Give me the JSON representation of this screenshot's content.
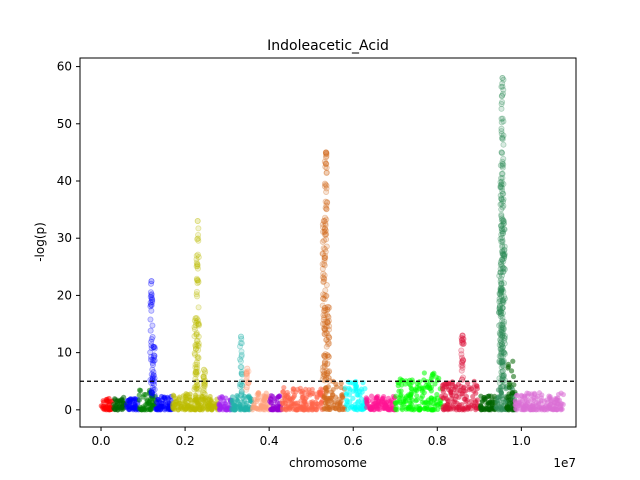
{
  "chart_data": {
    "type": "scatter",
    "title": "Indoleacetic_Acid",
    "xlabel": "chromosome",
    "ylabel": "-log(p)",
    "x_offset_label": "1e7",
    "xlim": [
      -0.05,
      1.13
    ],
    "ylim": [
      -3,
      61.5
    ],
    "x_unit": "1e7",
    "xticks": [
      0.0,
      0.2,
      0.4,
      0.6,
      0.8,
      1.0
    ],
    "xtick_labels": [
      "0.0",
      "0.2",
      "0.4",
      "0.6",
      "0.8",
      "1.0"
    ],
    "yticks": [
      0,
      10,
      20,
      30,
      40,
      50,
      60
    ],
    "ytick_labels": [
      "0",
      "10",
      "20",
      "30",
      "40",
      "50",
      "60"
    ],
    "threshold": 5,
    "grid": false,
    "legend": "none",
    "segments": [
      {
        "start": 0.0,
        "end": 0.03,
        "color": "#ff0000",
        "base": 2.0,
        "peaks": []
      },
      {
        "start": 0.03,
        "end": 0.06,
        "color": "#006400",
        "base": 2.2,
        "peaks": []
      },
      {
        "start": 0.06,
        "end": 0.09,
        "color": "#0000ff",
        "base": 2.0,
        "peaks": []
      },
      {
        "start": 0.09,
        "end": 0.13,
        "color": "#008000",
        "base": 3.5,
        "peaks": []
      },
      {
        "start": 0.13,
        "end": 0.17,
        "color": "#0000ff",
        "base": 2.5,
        "peaks": [
          {
            "x": 0.12,
            "y": 22.5
          },
          {
            "x": 0.125,
            "y": 11.0
          }
        ]
      },
      {
        "start": 0.17,
        "end": 0.23,
        "color": "#bbbb00",
        "base": 3.0,
        "peaks": [
          {
            "x": 0.23,
            "y": 33.0
          },
          {
            "x": 0.225,
            "y": 16.0
          }
        ]
      },
      {
        "start": 0.23,
        "end": 0.28,
        "color": "#bbbb00",
        "base": 2.5,
        "peaks": [
          {
            "x": 0.245,
            "y": 7.0
          }
        ]
      },
      {
        "start": 0.28,
        "end": 0.31,
        "color": "#a020f0",
        "base": 2.5,
        "peaks": []
      },
      {
        "start": 0.31,
        "end": 0.36,
        "color": "#20b2aa",
        "base": 2.5,
        "peaks": [
          {
            "x": 0.333,
            "y": 12.8
          }
        ]
      },
      {
        "start": 0.36,
        "end": 0.4,
        "color": "#ffa07a",
        "base": 3.5,
        "peaks": [
          {
            "x": 0.348,
            "y": 7.2
          }
        ]
      },
      {
        "start": 0.4,
        "end": 0.43,
        "color": "#9400d3",
        "base": 2.5,
        "peaks": []
      },
      {
        "start": 0.43,
        "end": 0.53,
        "color": "#ff6347",
        "base": 4.0,
        "peaks": []
      },
      {
        "start": 0.53,
        "end": 0.58,
        "color": "#d2691e",
        "base": 5.0,
        "peaks": [
          {
            "x": 0.535,
            "y": 45.0
          },
          {
            "x": 0.53,
            "y": 33.0
          },
          {
            "x": 0.54,
            "y": 18.0
          }
        ]
      },
      {
        "start": 0.58,
        "end": 0.63,
        "color": "#00ffff",
        "base": 5.0,
        "peaks": []
      },
      {
        "start": 0.63,
        "end": 0.66,
        "color": "#ff1493",
        "base": 2.5,
        "peaks": []
      },
      {
        "start": 0.66,
        "end": 0.7,
        "color": "#ff1493",
        "base": 2.5,
        "peaks": []
      },
      {
        "start": 0.7,
        "end": 0.76,
        "color": "#00ff00",
        "base": 5.5,
        "peaks": []
      },
      {
        "start": 0.76,
        "end": 0.81,
        "color": "#00ff00",
        "base": 6.5,
        "peaks": []
      },
      {
        "start": 0.81,
        "end": 0.9,
        "color": "#dc143c",
        "base": 5.0,
        "peaks": [
          {
            "x": 0.86,
            "y": 13.0
          }
        ]
      },
      {
        "start": 0.9,
        "end": 0.94,
        "color": "#006400",
        "base": 2.5,
        "peaks": []
      },
      {
        "start": 0.94,
        "end": 0.985,
        "color": "#2e8b57",
        "base": 4.0,
        "peaks": [
          {
            "x": 0.955,
            "y": 58.0
          },
          {
            "x": 0.953,
            "y": 45.0
          },
          {
            "x": 0.958,
            "y": 33.0
          },
          {
            "x": 0.95,
            "y": 24.0
          }
        ]
      },
      {
        "start": 0.965,
        "end": 0.985,
        "color": "#006400",
        "base": 8.5,
        "peaks": []
      },
      {
        "start": 0.985,
        "end": 1.1,
        "color": "#da70d6",
        "base": 3.0,
        "peaks": []
      }
    ]
  }
}
